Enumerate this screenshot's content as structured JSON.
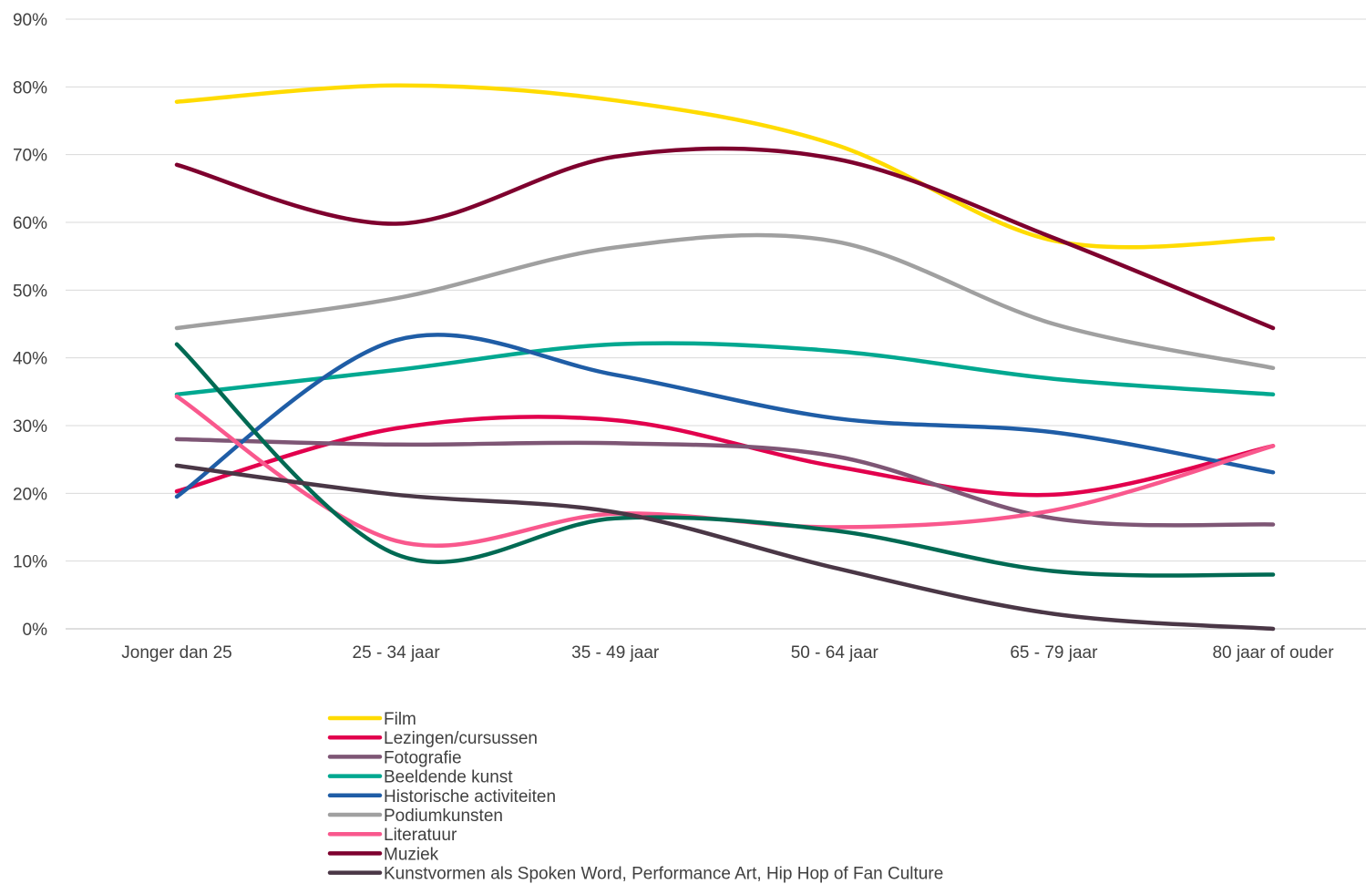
{
  "chart_data": {
    "type": "line",
    "smooth": true,
    "categories": [
      "Jonger dan 25",
      "25 - 34 jaar",
      "35 - 49 jaar",
      "50 - 64 jaar",
      "65 - 79 jaar",
      "80 jaar of ouder"
    ],
    "ylim": [
      0,
      90
    ],
    "ytick_step": 10,
    "ytick_suffix": "%",
    "grid": "horizontal",
    "legend_position": "bottom",
    "series": [
      {
        "name": "Film",
        "color": "#FFDB00",
        "values": [
          77.8,
          80.2,
          78.0,
          71.5,
          57.3,
          57.6
        ]
      },
      {
        "name": "Lezingen/cursussen",
        "color": "#E2004D",
        "values": [
          20.3,
          29.6,
          30.8,
          24.0,
          19.8,
          27.0
        ]
      },
      {
        "name": "Fotografie",
        "color": "#7E5675",
        "values": [
          28.0,
          27.2,
          27.4,
          25.5,
          16.3,
          15.4
        ]
      },
      {
        "name": "Beeldende kunst",
        "color": "#00A890",
        "values": [
          34.6,
          38.2,
          42.0,
          41.0,
          36.9,
          34.6
        ]
      },
      {
        "name": "Historische activiteiten",
        "color": "#1F5DA6",
        "values": [
          19.5,
          42.6,
          37.5,
          31.1,
          29.0,
          23.1
        ]
      },
      {
        "name": "Podiumkunsten",
        "color": "#A0A0A0",
        "values": [
          44.4,
          48.8,
          56.3,
          57.2,
          45.0,
          38.5
        ]
      },
      {
        "name": "Literatuur",
        "color": "#F9588D",
        "values": [
          34.3,
          13.0,
          17.0,
          15.0,
          17.5,
          27.0
        ]
      },
      {
        "name": "Muziek",
        "color": "#7E002E",
        "values": [
          68.5,
          59.8,
          69.7,
          69.4,
          57.7,
          44.4
        ]
      },
      {
        "name": "",
        "color": "#006A53",
        "values": [
          42.0,
          11.0,
          16.3,
          14.5,
          8.5,
          8.0
        ]
      },
      {
        "name": "Kunstvormen als Spoken Word, Performance Art, Hip Hop of Fan Culture",
        "color": "#4A3746",
        "values": [
          24.1,
          19.8,
          17.2,
          9.0,
          2.2,
          0.0
        ]
      }
    ]
  }
}
